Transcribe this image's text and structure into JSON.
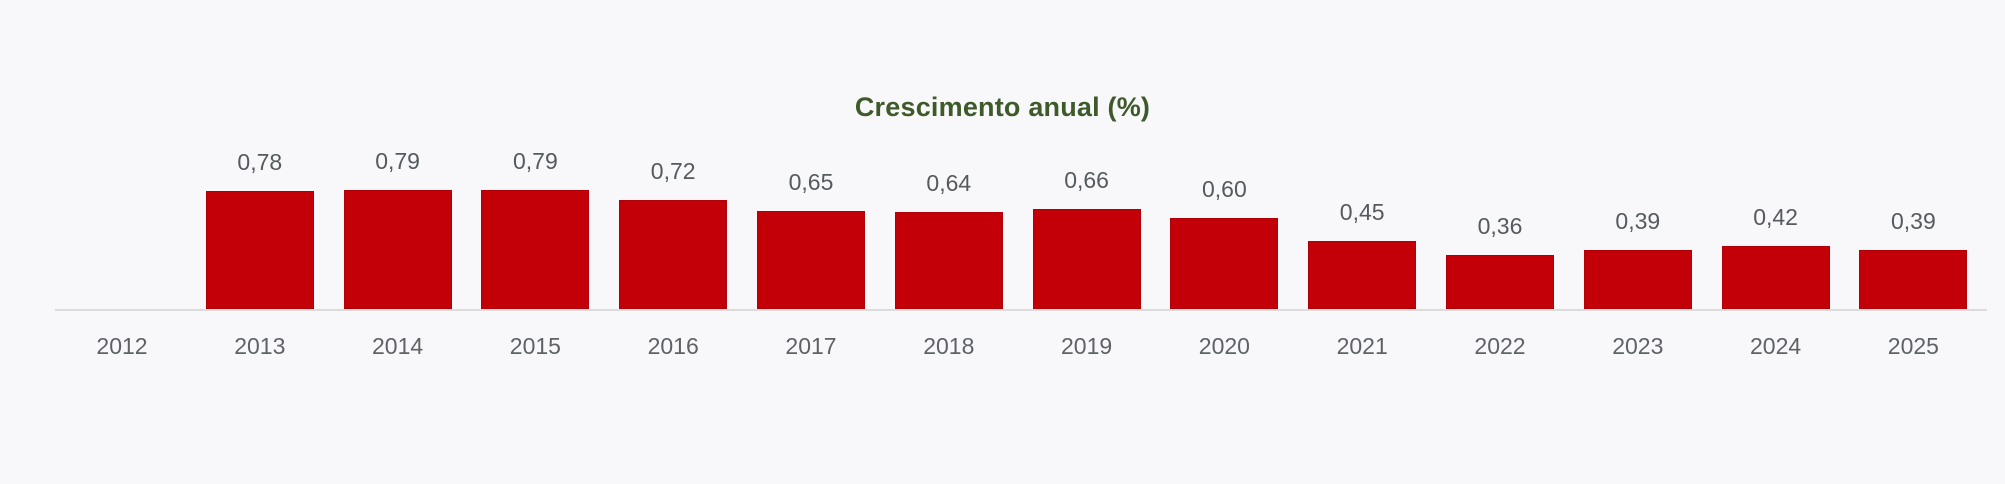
{
  "chart_data": {
    "type": "bar",
    "title": "Crescimento anual (%)",
    "xlabel": "",
    "ylabel": "",
    "categories": [
      "2012",
      "2013",
      "2014",
      "2015",
      "2016",
      "2017",
      "2018",
      "2019",
      "2020",
      "2021",
      "2022",
      "2023",
      "2024",
      "2025"
    ],
    "values": [
      null,
      0.78,
      0.79,
      0.79,
      0.72,
      0.65,
      0.64,
      0.66,
      0.6,
      0.45,
      0.36,
      0.39,
      0.42,
      0.39
    ],
    "value_labels": [
      "",
      "0,78",
      "0,79",
      "0,79",
      "0,72",
      "0,65",
      "0,64",
      "0,66",
      "0,60",
      "0,45",
      "0,36",
      "0,39",
      "0,42",
      "0,39"
    ],
    "ylim": [
      0,
      0.9
    ],
    "grid": false,
    "legend": null,
    "colors": {
      "bar": "#c30008",
      "title": "#3f5a2a",
      "axis": "#dcdcdc",
      "text": "#5e6266",
      "background": "#f8f8fa"
    }
  }
}
